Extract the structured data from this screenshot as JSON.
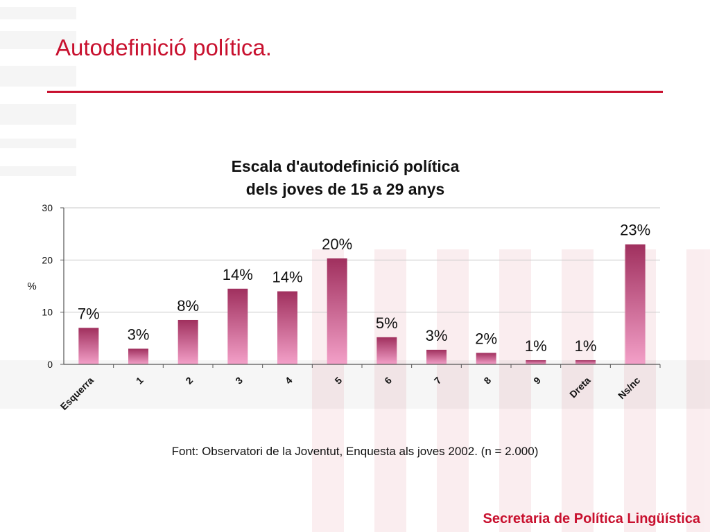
{
  "slide": {
    "title": "Autodefinició política.",
    "source": "Font: Observatori de la Joventut, Enquesta als joves 2002. (n = 2.000)",
    "footer": "Secretaria de Política Lingüística"
  },
  "colors": {
    "accent": "#c8102e",
    "bar_top": "#a0305e",
    "bar_bottom": "#f3a0c8"
  },
  "chart_data": {
    "type": "bar",
    "title_lines": [
      "Escala d'autodefinició política",
      "dels joves de 15 a 29 anys"
    ],
    "xlabel": "",
    "ylabel": "%",
    "ylim": [
      0,
      30
    ],
    "yticks": [
      "0",
      "10",
      "20",
      "30"
    ],
    "grid": true,
    "categories": [
      "Esquerra",
      "1",
      "2",
      "3",
      "4",
      "5",
      "6",
      "7",
      "8",
      "9",
      "Dreta",
      "Ns/nc"
    ],
    "values": [
      7,
      3,
      8.5,
      14.5,
      14,
      20.3,
      5.2,
      2.8,
      2.2,
      0.8,
      0.8,
      23
    ],
    "data_labels": [
      "7%",
      "3%",
      "8%",
      "14%",
      "14%",
      "20%",
      "5%",
      "3%",
      "2%",
      "1%",
      "1%",
      "23%"
    ]
  }
}
